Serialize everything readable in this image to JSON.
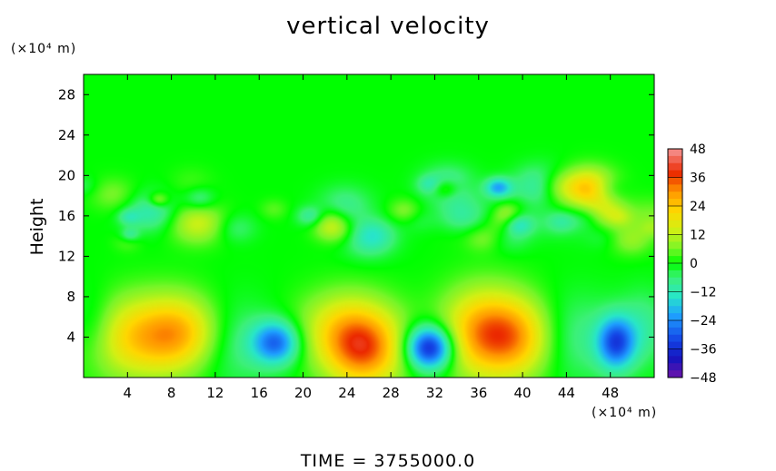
{
  "chart_data": {
    "type": "heatmap",
    "title": "vertical velocity",
    "ylabel": "Height",
    "xlabel": "",
    "x_unit": "(×10⁴ m)",
    "y_unit": "(×10⁴ m)",
    "footer": "TIME  =  3755000.0",
    "xlim": [
      0,
      52
    ],
    "ylim": [
      0,
      30
    ],
    "xticks": [
      4,
      8,
      12,
      16,
      20,
      24,
      28,
      32,
      36,
      40,
      44,
      48
    ],
    "yticks": [
      4,
      8,
      12,
      16,
      20,
      24,
      28
    ],
    "colorbar": {
      "levels": [
        48,
        36,
        24,
        12,
        0,
        -12,
        -24,
        -36,
        -48
      ],
      "range": [
        -48,
        48
      ]
    },
    "features": [
      {
        "x": 5,
        "y": 4,
        "value": 22,
        "sx": 3.5,
        "sy": 2.8
      },
      {
        "x": 9,
        "y": 4.5,
        "value": 18,
        "sx": 2.5,
        "sy": 2.5
      },
      {
        "x": 17.5,
        "y": 3.5,
        "value": -28,
        "sx": 1.5,
        "sy": 1.5
      },
      {
        "x": 25.5,
        "y": 2.5,
        "value": 28,
        "sx": 2.5,
        "sy": 2.5
      },
      {
        "x": 24,
        "y": 5,
        "value": 18,
        "sx": 3,
        "sy": 2.5
      },
      {
        "x": 31.5,
        "y": 3,
        "value": -40,
        "sx": 1.5,
        "sy": 1.5
      },
      {
        "x": 36,
        "y": 4.5,
        "value": 24,
        "sx": 2.5,
        "sy": 3
      },
      {
        "x": 39.5,
        "y": 4,
        "value": 26,
        "sx": 2.5,
        "sy": 2.8
      },
      {
        "x": 48.5,
        "y": 3.5,
        "value": -30,
        "sx": 1.2,
        "sy": 1.8
      },
      {
        "x": 13.5,
        "y": 3.5,
        "value": -8,
        "sx": 2.5,
        "sy": 3
      },
      {
        "x": 44,
        "y": 4,
        "value": -9,
        "sx": 3,
        "sy": 3
      },
      {
        "x": 0.8,
        "y": 5,
        "value": -8,
        "sx": 1.5,
        "sy": 2.5
      },
      {
        "x": 51,
        "y": 5,
        "value": -8,
        "sx": 1.5,
        "sy": 2.5
      }
    ]
  }
}
